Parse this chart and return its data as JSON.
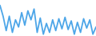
{
  "y_values": [
    85,
    55,
    15,
    55,
    10,
    45,
    25,
    65,
    30,
    70,
    45,
    75,
    10,
    50,
    5,
    35,
    10,
    45,
    15,
    48,
    20,
    52,
    18,
    42,
    5,
    38,
    10,
    48,
    22,
    45,
    5,
    25
  ],
  "line_color": "#4da6e8",
  "line_width": 1.3,
  "background_color": "#ffffff"
}
